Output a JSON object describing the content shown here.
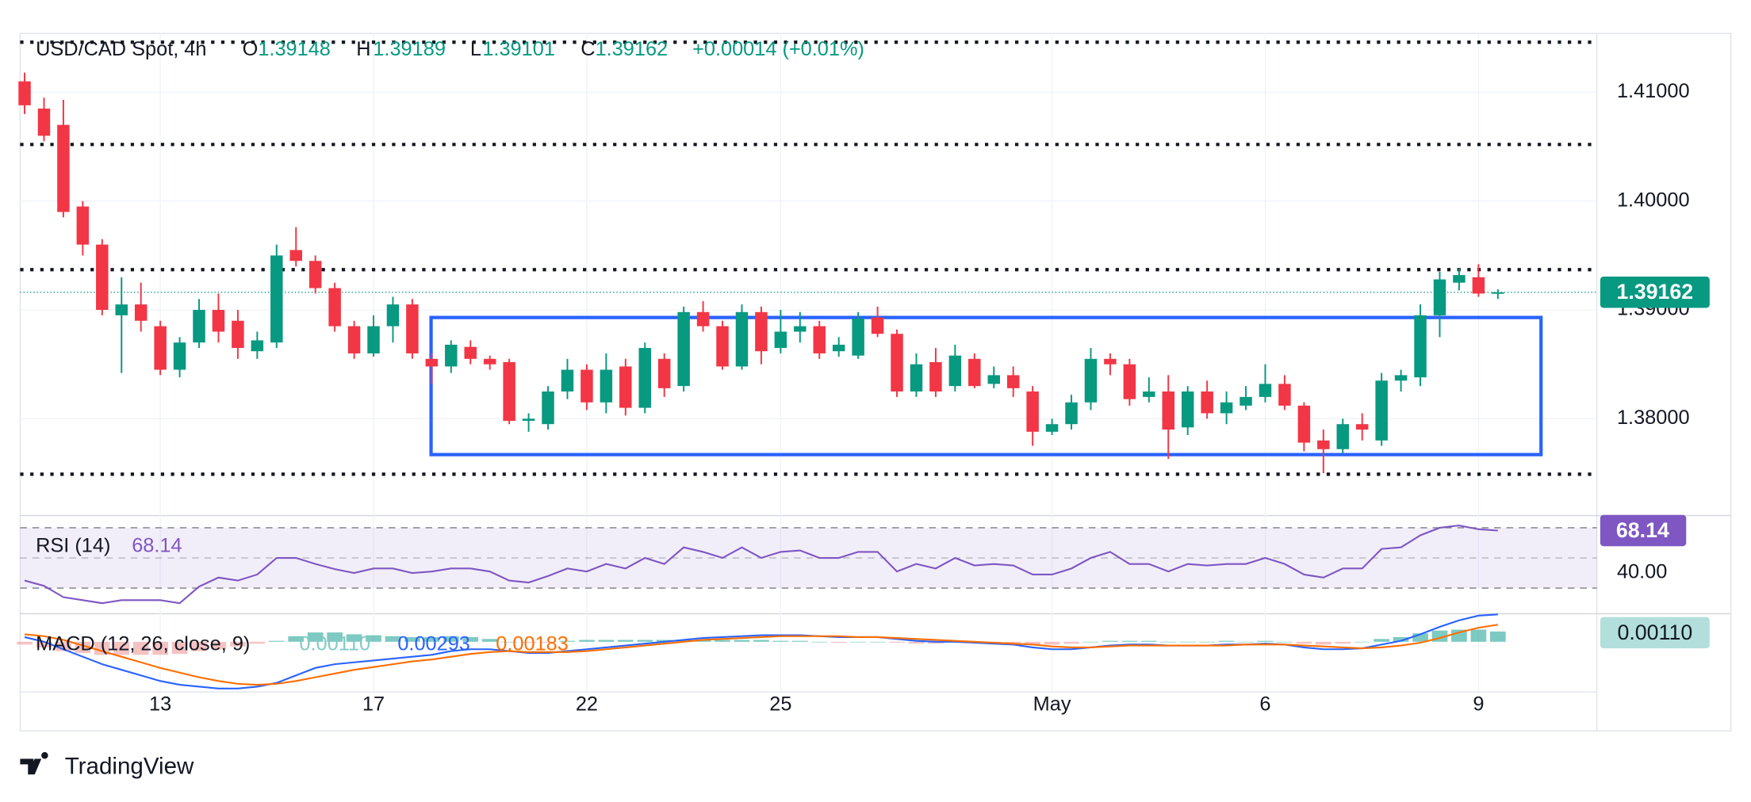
{
  "chart_data": {
    "type": "candlestick",
    "title": "USD/CAD Spot, 4h",
    "ohlc_legend": [
      {
        "key": "O",
        "value": 1.39148
      },
      {
        "key": "H",
        "value": 1.39189
      },
      {
        "key": "L",
        "value": 1.39101
      },
      {
        "key": "C",
        "value": 1.39162
      }
    ],
    "change": "+0.00014 (+0.01%)",
    "up_color": "#089981",
    "down_color": "#f23645",
    "categories": [
      null,
      null,
      null,
      null,
      null,
      null,
      null,
      "13",
      null,
      null,
      null,
      null,
      null,
      null,
      null,
      null,
      null,
      null,
      "17",
      null,
      null,
      null,
      null,
      null,
      null,
      null,
      null,
      null,
      null,
      "22",
      null,
      null,
      null,
      null,
      null,
      null,
      null,
      null,
      null,
      "25",
      null,
      null,
      null,
      null,
      null,
      null,
      null,
      null,
      null,
      null,
      null,
      null,
      null,
      "May",
      null,
      null,
      null,
      null,
      null,
      null,
      null,
      null,
      null,
      null,
      "6",
      null,
      null,
      null,
      null,
      null,
      null,
      null,
      null,
      null,
      null,
      "9",
      null
    ],
    "open": [
      1.411,
      1.4085,
      1.407,
      1.3995,
      1.396,
      1.3895,
      1.3905,
      1.3885,
      1.3845,
      1.387,
      1.39,
      1.389,
      1.3862,
      1.387,
      1.3955,
      1.3945,
      1.392,
      1.3885,
      1.386,
      1.3885,
      1.3905,
      1.3855,
      1.3848,
      1.3866,
      1.3855,
      1.3852,
      1.3798,
      1.3795,
      1.3825,
      1.3845,
      1.3815,
      1.3848,
      1.381,
      1.3855,
      1.383,
      1.3898,
      1.3885,
      1.3848,
      1.3898,
      1.3865,
      1.388,
      1.3885,
      1.3862,
      1.3858,
      1.3893,
      1.3878,
      1.3825,
      1.3852,
      1.383,
      1.3855,
      1.3832,
      1.384,
      1.3825,
      1.3788,
      1.3795,
      1.3815,
      1.3855,
      1.385,
      1.382,
      1.3825,
      1.3792,
      1.3825,
      1.3805,
      1.3812,
      1.382,
      1.3832,
      1.3812,
      1.378,
      1.3772,
      1.3795,
      1.378,
      1.3835,
      1.3838,
      1.3895,
      1.3925,
      1.393,
      1.39148
    ],
    "high": [
      1.4118,
      1.4095,
      1.4093,
      1.4,
      1.3965,
      1.393,
      1.3925,
      1.389,
      1.3875,
      1.391,
      1.3915,
      1.39,
      1.388,
      1.396,
      1.3976,
      1.395,
      1.3925,
      1.389,
      1.3895,
      1.3912,
      1.391,
      1.386,
      1.3872,
      1.3872,
      1.3858,
      1.3855,
      1.3805,
      1.383,
      1.3855,
      1.385,
      1.386,
      1.3855,
      1.387,
      1.386,
      1.3903,
      1.3908,
      1.389,
      1.3905,
      1.3903,
      1.39,
      1.3898,
      1.389,
      1.3875,
      1.3898,
      1.3903,
      1.3882,
      1.386,
      1.3865,
      1.3868,
      1.386,
      1.3848,
      1.3848,
      1.383,
      1.38,
      1.3822,
      1.3865,
      1.386,
      1.3855,
      1.3838,
      1.384,
      1.383,
      1.3835,
      1.3825,
      1.383,
      1.385,
      1.384,
      1.3815,
      1.379,
      1.38,
      1.3805,
      1.3842,
      1.3845,
      1.3905,
      1.3935,
      1.3938,
      1.3942,
      1.39189
    ],
    "low": [
      1.408,
      1.4055,
      1.3985,
      1.395,
      1.3895,
      1.3842,
      1.388,
      1.384,
      1.3838,
      1.3865,
      1.387,
      1.3855,
      1.3855,
      1.3865,
      1.394,
      1.3915,
      1.388,
      1.3855,
      1.3857,
      1.387,
      1.3855,
      1.3832,
      1.3842,
      1.385,
      1.3845,
      1.3795,
      1.3788,
      1.379,
      1.3818,
      1.3808,
      1.3805,
      1.3803,
      1.3805,
      1.382,
      1.3825,
      1.388,
      1.3845,
      1.3845,
      1.385,
      1.386,
      1.387,
      1.3855,
      1.3857,
      1.3855,
      1.3875,
      1.382,
      1.382,
      1.382,
      1.3825,
      1.3828,
      1.3828,
      1.382,
      1.3775,
      1.3785,
      1.379,
      1.3808,
      1.384,
      1.3812,
      1.3815,
      1.3763,
      1.3785,
      1.38,
      1.3795,
      1.3808,
      1.3815,
      1.3808,
      1.377,
      1.375,
      1.3768,
      1.378,
      1.3775,
      1.3825,
      1.383,
      1.3875,
      1.3918,
      1.3912,
      1.39101
    ],
    "close": [
      1.4088,
      1.406,
      1.399,
      1.396,
      1.39,
      1.3905,
      1.389,
      1.3845,
      1.387,
      1.39,
      1.388,
      1.3865,
      1.3872,
      1.395,
      1.3945,
      1.392,
      1.3885,
      1.386,
      1.3885,
      1.3905,
      1.386,
      1.3848,
      1.3868,
      1.3855,
      1.385,
      1.3798,
      1.38,
      1.3825,
      1.3845,
      1.3815,
      1.3845,
      1.381,
      1.3865,
      1.3828,
      1.3898,
      1.3885,
      1.3848,
      1.3898,
      1.3862,
      1.388,
      1.3885,
      1.386,
      1.3868,
      1.3892,
      1.3878,
      1.3825,
      1.385,
      1.3825,
      1.3858,
      1.383,
      1.384,
      1.3828,
      1.3788,
      1.3795,
      1.3815,
      1.3855,
      1.385,
      1.3818,
      1.3825,
      1.379,
      1.3825,
      1.3805,
      1.3815,
      1.382,
      1.3832,
      1.3812,
      1.3778,
      1.3772,
      1.3795,
      1.379,
      1.3835,
      1.384,
      1.3895,
      1.3928,
      1.3932,
      1.3915,
      1.39162
    ],
    "ylim": [
      1.3711,
      1.4154
    ],
    "yticks": [
      {
        "value": 1.38,
        "label": "1.38000"
      },
      {
        "value": 1.39,
        "label": "1.39000"
      },
      {
        "value": 1.4,
        "label": "1.40000"
      },
      {
        "value": 1.41,
        "label": "1.41000"
      }
    ],
    "grid": true,
    "last_price": {
      "value": 1.39162,
      "label": "1.39162",
      "color": "#089981"
    },
    "levels": [
      1.4146,
      1.4052,
      1.3937,
      1.3749
    ],
    "range_box": {
      "top": 1.3893,
      "bottom": 1.3767,
      "color": "#2962ff"
    },
    "rsi": {
      "title": "RSI (14)",
      "color": "#7e57c2",
      "values": [
        35,
        31.5,
        24,
        22,
        20,
        22,
        22,
        22,
        20,
        31,
        37,
        35,
        39,
        50,
        50,
        46,
        42.6,
        40,
        43,
        43,
        40,
        41,
        43,
        43,
        41,
        35,
        33.7,
        38,
        43,
        41,
        46,
        43,
        50,
        46,
        57,
        54,
        50,
        57,
        50,
        54,
        55,
        50,
        50,
        54,
        54,
        41,
        46,
        43,
        50,
        45,
        46,
        45,
        39,
        39,
        43,
        50,
        54,
        46,
        46,
        41,
        46,
        45,
        46,
        46,
        50,
        46,
        39,
        37,
        43,
        43,
        56,
        57,
        65,
        70,
        71.5,
        69,
        68.14
      ],
      "ylim": [
        13,
        78.1
      ],
      "yticks": [
        {
          "value": 40,
          "label": "40.00"
        }
      ],
      "levels": [
        70,
        50,
        30
      ]
    },
    "macd": {
      "title": "MACD (12, 26, close, 9)",
      "series": [
        {
          "name": "macd",
          "color": "#2962ff",
          "values": [
            0.0005,
            0,
            -0.0008,
            -0.0016,
            -0.0024,
            -0.003,
            -0.0036,
            -0.0042,
            -0.0046,
            -0.0048,
            -0.005,
            -0.005,
            -0.0048,
            -0.0044,
            -0.0036,
            -0.0028,
            -0.0024,
            -0.0022,
            -0.002,
            -0.0018,
            -0.0016,
            -0.0014,
            -0.001,
            -0.0008,
            -0.0008,
            -0.001,
            -0.0012,
            -0.0012,
            -0.001,
            -0.0008,
            -0.0006,
            -0.0004,
            -0.0002,
            0,
            0.0002,
            0.0004,
            0.0005,
            0.0006,
            0.0007,
            0.0007,
            0.0007,
            0.0006,
            0.0005,
            0.0005,
            0.0005,
            0.0003,
            0.0001,
            0,
            0,
            -0.0001,
            -0.0002,
            -0.0003,
            -0.0006,
            -0.0008,
            -0.0008,
            -0.0006,
            -0.0004,
            -0.0003,
            -0.0003,
            -0.0004,
            -0.0004,
            -0.0004,
            -0.0003,
            -0.0003,
            -0.0002,
            -0.0003,
            -0.0006,
            -0.0008,
            -0.0008,
            -0.0007,
            -0.0003,
            0.0001,
            0.0008,
            0.0016,
            0.0023,
            0.0028,
            0.00293
          ]
        },
        {
          "name": "signal",
          "color": "#ff6d00",
          "values": [
            0.0008,
            0.0006,
            0.0002,
            -0.0004,
            -0.001,
            -0.0016,
            -0.0022,
            -0.0028,
            -0.0033,
            -0.0038,
            -0.0042,
            -0.0045,
            -0.0046,
            -0.0045,
            -0.0042,
            -0.0038,
            -0.0034,
            -0.003,
            -0.0027,
            -0.0024,
            -0.0021,
            -0.0019,
            -0.0016,
            -0.0013,
            -0.0011,
            -0.001,
            -0.0011,
            -0.0011,
            -0.0011,
            -0.001,
            -0.0008,
            -0.0006,
            -0.0004,
            -0.0002,
            0,
            0.0002,
            0.0003,
            0.0004,
            0.0005,
            0.0006,
            0.0006,
            0.0006,
            0.0006,
            0.0005,
            0.0005,
            0.0004,
            0.0003,
            0.0002,
            0.0001,
            0,
            -0.0001,
            -0.0002,
            -0.0003,
            -0.0005,
            -0.0006,
            -0.0006,
            -0.0005,
            -0.0004,
            -0.0004,
            -0.0004,
            -0.0004,
            -0.0004,
            -0.0004,
            -0.0003,
            -0.0003,
            -0.0003,
            -0.0004,
            -0.0005,
            -0.0006,
            -0.0007,
            -0.0006,
            -0.0004,
            -0.0001,
            0.0004,
            0.001,
            0.0015,
            0.00183
          ]
        },
        {
          "name": "histogram",
          "color": "#26a69a",
          "negative_color": "#ef9a9a",
          "values": [
            -0.0003,
            -0.0006,
            -0.001,
            -0.0012,
            -0.0014,
            -0.0014,
            -0.0014,
            -0.0014,
            -0.0013,
            -0.001,
            -0.0008,
            -0.0005,
            -0.0002,
            0.0001,
            0.0006,
            0.001,
            0.001,
            0.0008,
            0.0007,
            0.0006,
            0.0005,
            0.0005,
            0.0006,
            0.0005,
            0.0003,
            0,
            -0.0001,
            -0.0001,
            0.0001,
            0.0002,
            0.0002,
            0.0002,
            0.0002,
            0.0002,
            0.0002,
            0.0002,
            0.0002,
            0.0002,
            0.0002,
            0.0001,
            0.0001,
            0,
            -0.0001,
            0,
            0,
            -0.0001,
            -0.0002,
            -0.0002,
            -0.0001,
            -0.0001,
            -0.0001,
            -0.0001,
            -0.0003,
            -0.0003,
            -0.0002,
            0,
            0.0001,
            0.0001,
            0.0001,
            0,
            0,
            0,
            0.0001,
            0,
            0.0001,
            0,
            -0.0002,
            -0.0003,
            -0.0002,
            0,
            0.0003,
            0.0005,
            0.0009,
            0.0012,
            0.0013,
            0.0013,
            0.0011
          ]
        }
      ],
      "readout": [
        {
          "value": 0.0011,
          "label": "0.00110",
          "color": "#80cbc4"
        },
        {
          "value": 0.00293,
          "label": "0.00293",
          "color": "#2962ff"
        },
        {
          "value": 0.00183,
          "label": "0.00183",
          "color": "#ff6d00"
        }
      ],
      "ylim": [
        -0.0056,
        0.003
      ]
    }
  },
  "branding": "TradingView"
}
